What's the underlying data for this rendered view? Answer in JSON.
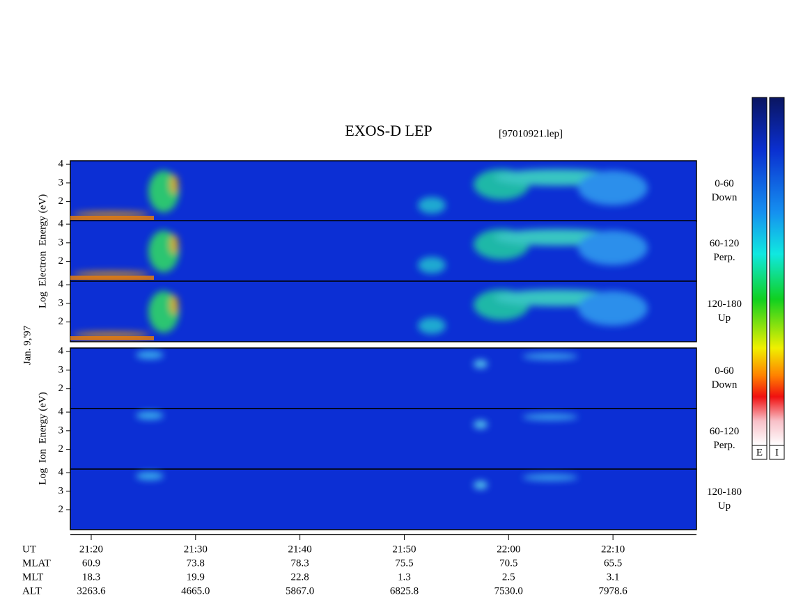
{
  "title": "EXOS-D LEP",
  "file": "[97010921.lep]",
  "date": "Jan. 9,'97",
  "electron_label": "Log  Electron  Energy (eV)",
  "ion_label": "Log  Ion  Energy (eV)",
  "chart_data": [
    {
      "type": "spectrogram",
      "pitch": "0-60",
      "direction": "Down",
      "ylim": [
        0.94,
        4.19
      ],
      "yticks": [
        2,
        3,
        4
      ]
    },
    {
      "type": "spectrogram",
      "pitch": "60-120",
      "direction": "Perp.",
      "ylim": [
        0.94,
        4.19
      ],
      "yticks": [
        2,
        3,
        4
      ]
    },
    {
      "type": "spectrogram",
      "pitch": "120-180",
      "direction": "Up",
      "ylim": [
        0.94,
        4.19
      ],
      "yticks": [
        2,
        3,
        4
      ]
    },
    {
      "type": "spectrogram",
      "pitch": "0-60",
      "direction": "Down",
      "ylim": [
        0.94,
        4.19
      ],
      "yticks": [
        2,
        3,
        4
      ]
    },
    {
      "type": "spectrogram",
      "pitch": "60-120",
      "direction": "Perp.",
      "ylim": [
        0.94,
        4.19
      ],
      "yticks": [
        2,
        3,
        4
      ]
    },
    {
      "type": "spectrogram",
      "pitch": "120-180",
      "direction": "Up",
      "ylim": [
        0.94,
        4.19
      ],
      "yticks": [
        2,
        3,
        4
      ]
    }
  ],
  "time_axis": {
    "name": "UT",
    "xlim": [
      "21:18",
      "22:18"
    ],
    "xticks": [
      "21:20",
      "21:30",
      "21:40",
      "21:50",
      "22:00",
      "22:10"
    ]
  },
  "orbit": [
    {
      "name": "MLAT",
      "values": [
        "60.9",
        "73.8",
        "78.3",
        "75.5",
        "70.5",
        "65.5"
      ]
    },
    {
      "name": "MLT",
      "values": [
        "18.3",
        "19.9",
        "22.8",
        "1.3",
        "2.5",
        "3.1"
      ]
    },
    {
      "name": "ALT",
      "values": [
        "3263.6",
        "4665.0",
        "5867.0",
        "6825.8",
        "7530.0",
        "7978.6"
      ]
    }
  ],
  "colorbars": [
    "E",
    "I"
  ]
}
